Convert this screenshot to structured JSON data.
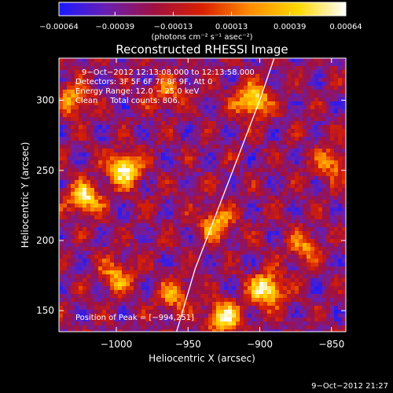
{
  "chart_data": {
    "type": "heatmap",
    "title": "Reconstructed RHESSI Image",
    "xlabel": "Heliocentric X (arcsec)",
    "ylabel": "Heliocentric Y (arcsec)",
    "xlim": [
      -1040,
      -840
    ],
    "ylim": [
      135,
      330
    ],
    "x_ticks": [
      -1000,
      -950,
      -900,
      -850
    ],
    "x_tick_labels": [
      "−1000",
      "−950",
      "−900",
      "−850"
    ],
    "y_ticks": [
      150,
      200,
      250,
      300
    ],
    "y_tick_labels": [
      "150",
      "200",
      "250",
      "300"
    ],
    "colorbar": {
      "ticks": [
        -0.00064,
        -0.00039,
        -0.00013,
        0.00013,
        0.00039,
        0.00064
      ],
      "tick_labels": [
        "−0.00064",
        "−0.00039",
        "−0.00013",
        "0.00013",
        "0.00039",
        "0.00064"
      ],
      "units": "(photons cm⁻² s⁻¹ asec⁻²)",
      "range": [
        -0.00064,
        0.00064
      ],
      "colormap": [
        "#1a1aff",
        "#6a1fb0",
        "#a01040",
        "#d92000",
        "#ff8c00",
        "#ffd800",
        "#ffffff"
      ]
    },
    "info_lines": [
      "9−Oct−2012 12:13:08.000 to 12:13:58.000",
      "Detectors: 3F 5F 6F 7F 8F 9F, Att 0",
      "Energy Range: 12.0 − 25.0 keV",
      "Clean     Total counts: 806."
    ],
    "peak_label": "Position of Peak = [−994,251]",
    "peak": {
      "x": -994,
      "y": 251
    },
    "limb_curve": [
      [
        -958,
        135
      ],
      [
        -945,
        180
      ],
      [
        -930,
        220
      ],
      [
        -915,
        260
      ],
      [
        -900,
        300
      ],
      [
        -890,
        330
      ]
    ],
    "emission_sources": [
      {
        "x": -994,
        "y": 251,
        "peak": 1.0
      },
      {
        "x": -1022,
        "y": 230,
        "peak": 0.85
      },
      {
        "x": -1000,
        "y": 175,
        "peak": 0.6
      },
      {
        "x": -895,
        "y": 165,
        "peak": 1.0
      },
      {
        "x": -925,
        "y": 145,
        "peak": 0.9
      },
      {
        "x": -905,
        "y": 300,
        "peak": 0.95
      },
      {
        "x": -930,
        "y": 212,
        "peak": 0.7
      },
      {
        "x": -850,
        "y": 255,
        "peak": 0.55
      },
      {
        "x": -870,
        "y": 195,
        "peak": 0.5
      },
      {
        "x": -965,
        "y": 305,
        "peak": 0.45
      },
      {
        "x": -1030,
        "y": 300,
        "peak": 0.6
      },
      {
        "x": -960,
        "y": 160,
        "peak": 0.55
      }
    ]
  },
  "footer_timestamp": "9−Oct−2012 21:27"
}
